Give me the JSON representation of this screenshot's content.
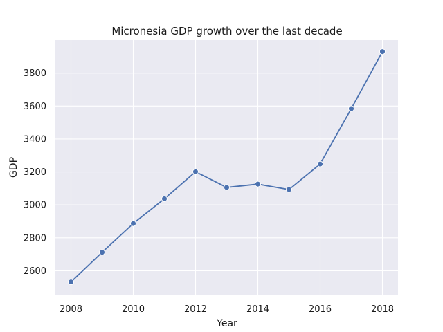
{
  "chart_data": {
    "type": "line",
    "title": "Micronesia GDP growth over the last decade",
    "xlabel": "Year",
    "ylabel": "GDP",
    "x": [
      2008,
      2009,
      2010,
      2011,
      2012,
      2013,
      2014,
      2015,
      2016,
      2017,
      2018
    ],
    "series": [
      {
        "values": [
          2532,
          2712,
          2887,
          3037,
          3201,
          3106,
          3126,
          3093,
          3248,
          3584,
          3930
        ]
      }
    ],
    "xlim": [
      2007.5,
      2018.5
    ],
    "ylim": [
      2455,
      4000
    ],
    "xticks": [
      "2008",
      "2010",
      "2012",
      "2014",
      "2016",
      "2018"
    ],
    "yticks": [
      "2600",
      "2800",
      "3000",
      "3200",
      "3400",
      "3600",
      "3800"
    ],
    "grid": true,
    "colors": {
      "background": "#EAEAF2",
      "grid": "#FFFFFF",
      "line": "#4C72B0"
    }
  }
}
